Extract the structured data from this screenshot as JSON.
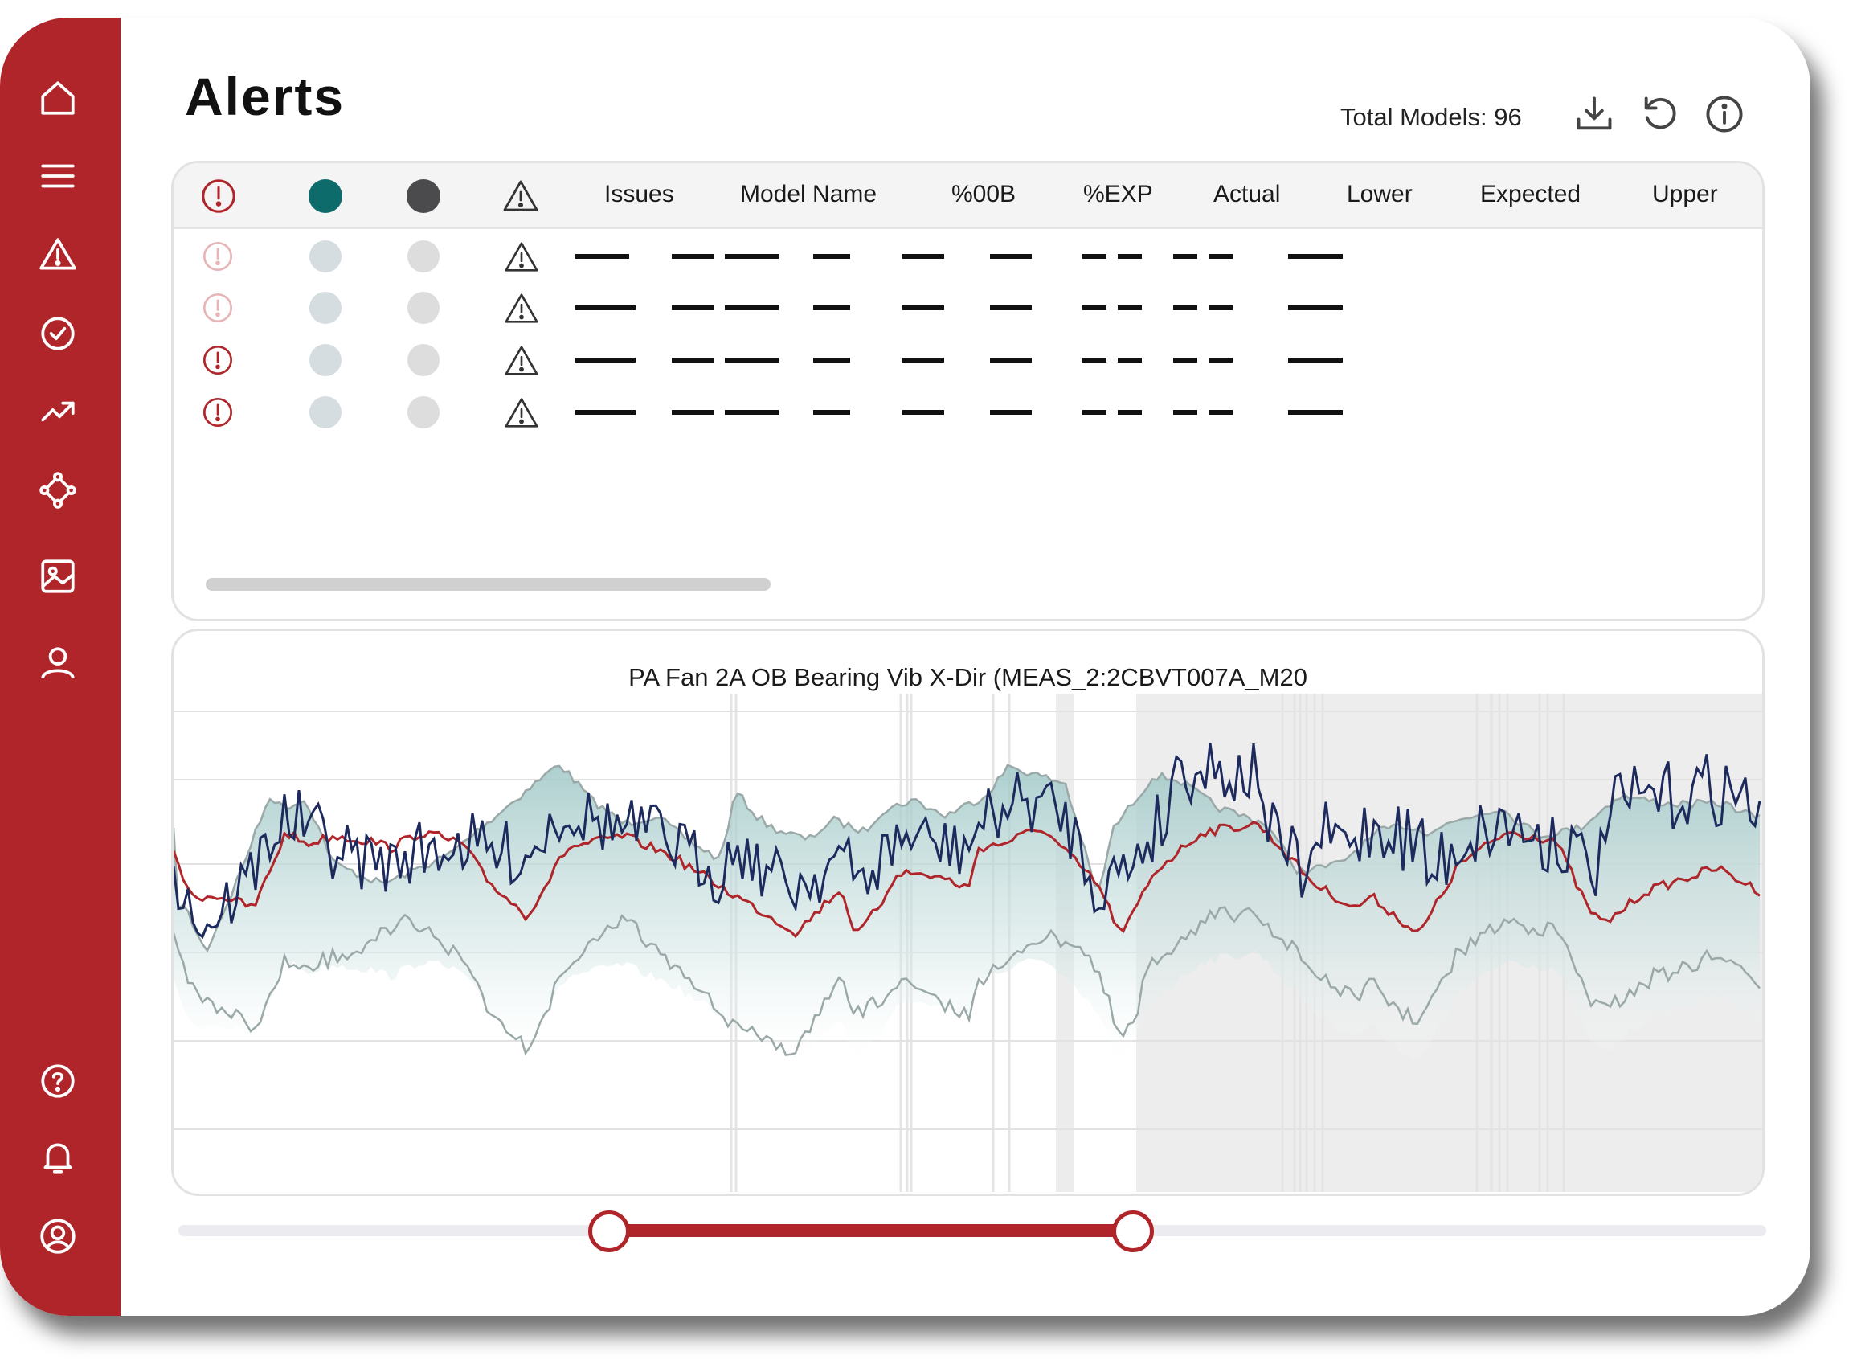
{
  "header": {
    "title": "Alerts",
    "total_models": "Total Models: 96"
  },
  "toolbar": [
    "download-icon",
    "refresh-icon",
    "info-icon"
  ],
  "sidebar": {
    "items": [
      "home-icon",
      "menu-icon",
      "alert-icon",
      "check-circle-icon",
      "trend-icon",
      "network-icon",
      "image-icon",
      "user-icon"
    ],
    "bottom_items": [
      "help-icon",
      "bell-icon",
      "account-icon"
    ]
  },
  "table": {
    "header_icons": [
      "alert-circle-icon",
      "status-dot-teal",
      "status-dot-dark",
      "warning-icon"
    ],
    "columns": [
      "Issues",
      "Model Name",
      "%00B",
      "%EXP",
      "Actual",
      "Lower",
      "Expected",
      "Upper"
    ],
    "rows": [
      {
        "alert_state": "faded"
      },
      {
        "alert_state": "faded"
      },
      {
        "alert_state": "active"
      },
      {
        "alert_state": "active"
      }
    ]
  },
  "chart_data": {
    "type": "line",
    "title": "PA Fan 2A OB Bearing Vib X-Dir (MEAS_2:2CBVT007A_M20",
    "series": [
      {
        "color": "#1d2a5e"
      },
      {
        "color": "#b0252a"
      },
      {
        "color": "#9aa8a8"
      },
      {
        "color": "#9ec7c6"
      }
    ],
    "grid": true
  },
  "range_slider": {
    "start": 0.27,
    "end": 0.6
  },
  "colors": {
    "accent": "#b0252a",
    "teal": "#0e6b6b",
    "dark_dot": "#4b4b4d",
    "actual_line": "#1d2a5e",
    "expected_line": "#b0252a",
    "lower_line": "#9aa8a8",
    "band": "#9ec7c6"
  }
}
